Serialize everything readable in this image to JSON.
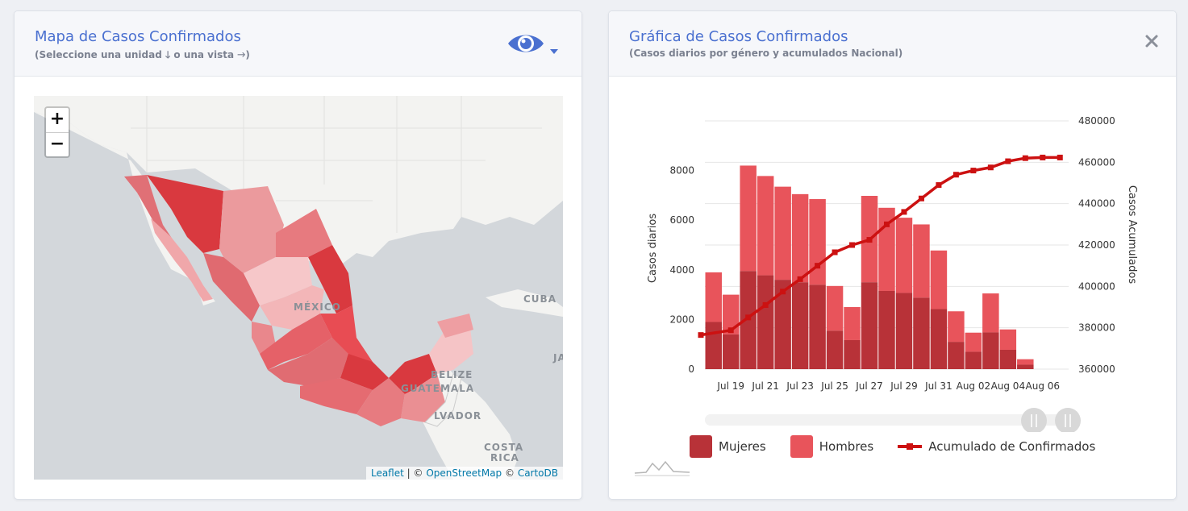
{
  "map_card": {
    "title": "Mapa de Casos Confirmados",
    "subtitle": "(Seleccione una unidad 🡓 o una vista 🡒)",
    "view_icon": "eye-icon",
    "zoom_in": "+",
    "zoom_out": "−",
    "labels": {
      "mexico": "MÉXICO",
      "cuba": "CUBA",
      "belize": "BELIZE",
      "guatemala": "GUATEMALA",
      "salvador": "LVADOR",
      "costa_rica_1": "COSTA",
      "costa_rica_2": "RICA",
      "ja": "JA"
    },
    "attribution": {
      "leaflet": "Leaflet",
      "sep1": " | © ",
      "osm": "OpenStreetMap",
      "sep2": " © ",
      "carto": "CartoDB"
    }
  },
  "chart_card": {
    "title": "Gráfica de Casos Confirmados",
    "subtitle": "(Casos diarios por género y acumulados Nacional)",
    "close_icon": "close-icon"
  },
  "colors": {
    "mujeres": "#b83238",
    "hombres": "#e8545b",
    "acumulado": "#cc1111",
    "title": "#4a70d0"
  },
  "chart_data": {
    "type": "bar",
    "categories": [
      "Jul 18",
      "Jul 19",
      "Jul 20",
      "Jul 21",
      "Jul 22",
      "Jul 23",
      "Jul 24",
      "Jul 25",
      "Jul 26",
      "Jul 27",
      "Jul 28",
      "Jul 29",
      "Jul 30",
      "Jul 31",
      "Aug 01",
      "Aug 02",
      "Aug 03",
      "Aug 04",
      "Aug 05",
      "Aug 06",
      "Aug 07"
    ],
    "x_tick_labels": [
      "Jul 19",
      "Jul 21",
      "Jul 23",
      "Jul 25",
      "Jul 27",
      "Jul 29",
      "Jul 31",
      "Aug 02",
      "Aug 04",
      "Aug 06"
    ],
    "series": [
      {
        "name": "Mujeres",
        "values": [
          1900,
          1400,
          3950,
          3780,
          3600,
          3500,
          3400,
          1550,
          1170,
          3500,
          3150,
          3070,
          2880,
          2420,
          1100,
          700,
          1480,
          780,
          180,
          0,
          0
        ]
      },
      {
        "name": "Hombres",
        "values": [
          2000,
          1600,
          4250,
          4000,
          3750,
          3550,
          3450,
          1800,
          1330,
          3480,
          3350,
          3030,
          2950,
          2360,
          1230,
          770,
          1570,
          820,
          220,
          0,
          0
        ]
      },
      {
        "name": "Acumulado de Confirmados",
        "axis": "right",
        "values": [
          376500,
          378800,
          385000,
          391000,
          397500,
          403500,
          410000,
          416500,
          420000,
          422500,
          430000,
          436000,
          442500,
          449000,
          454000,
          456000,
          457500,
          460500,
          462000,
          462300,
          462300
        ]
      }
    ],
    "ylabel": "Casos diarios",
    "ylabel_right": "Casos Acumulados",
    "ylim": [
      0,
      10000
    ],
    "y_ticks": [
      0,
      2000,
      4000,
      6000,
      8000
    ],
    "ylim_right": [
      360000,
      480000
    ],
    "y_ticks_right": [
      360000,
      380000,
      400000,
      420000,
      440000,
      460000,
      480000
    ],
    "grid": true,
    "legend_placement": "bottom"
  }
}
